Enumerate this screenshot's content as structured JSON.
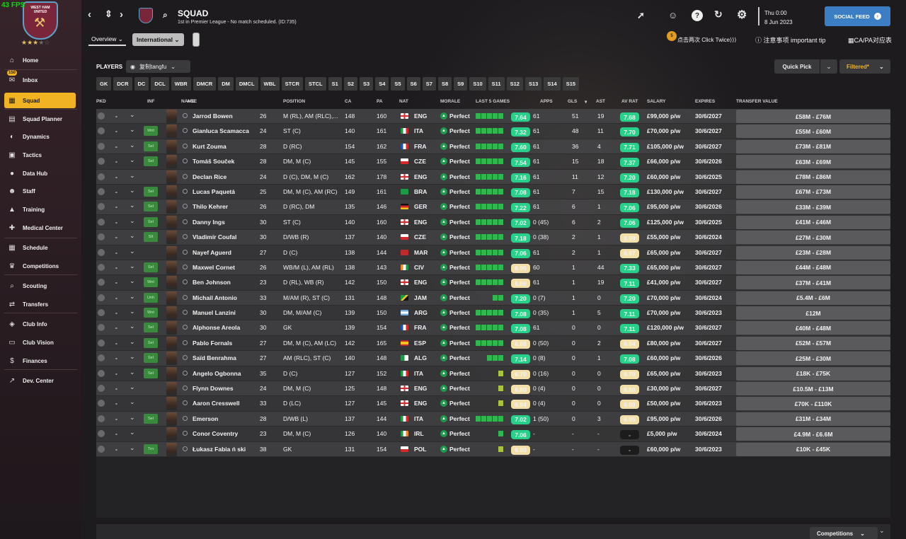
{
  "fps": "43 FPS",
  "club": {
    "name": "WEST HAM UNITED",
    "stars_full": "★★★",
    "stars_half": "★",
    "stars_empty": "☆"
  },
  "sidebar": {
    "inbox_badge": "150",
    "items": [
      {
        "label": "Home",
        "icon": "home-icon",
        "glyph": "⌂"
      },
      {
        "label": "Inbox",
        "icon": "inbox-icon",
        "glyph": "✉"
      },
      {
        "label": "Squad",
        "icon": "squad-icon",
        "glyph": "▦"
      },
      {
        "label": "Squad Planner",
        "icon": "planner-icon",
        "glyph": "▤"
      },
      {
        "label": "Dynamics",
        "icon": "dynamics-icon",
        "glyph": "◐"
      },
      {
        "label": "Tactics",
        "icon": "tactics-icon",
        "glyph": "▣"
      },
      {
        "label": "Data Hub",
        "icon": "data-hub-icon",
        "glyph": "●"
      },
      {
        "label": "Staff",
        "icon": "staff-icon",
        "glyph": "☻"
      },
      {
        "label": "Training",
        "icon": "training-icon",
        "glyph": "▲"
      },
      {
        "label": "Medical Center",
        "icon": "medical-icon",
        "glyph": "✚"
      },
      {
        "label": "Schedule",
        "icon": "schedule-icon",
        "glyph": "▦"
      },
      {
        "label": "Competitions",
        "icon": "trophy-icon",
        "glyph": "♛"
      },
      {
        "label": "Scouting",
        "icon": "scouting-icon",
        "glyph": "⌕"
      },
      {
        "label": "Transfers",
        "icon": "transfers-icon",
        "glyph": "⇄"
      },
      {
        "label": "Club Info",
        "icon": "club-info-icon",
        "glyph": "◈"
      },
      {
        "label": "Club Vision",
        "icon": "club-vision-icon",
        "glyph": "▭"
      },
      {
        "label": "Finances",
        "icon": "finances-icon",
        "glyph": "$"
      },
      {
        "label": "Dev. Center",
        "icon": "dev-center-icon",
        "glyph": "↗"
      }
    ]
  },
  "header": {
    "title": "SQUAD",
    "subtitle": "1st in Premier League - No match scheduled. (ID:735)",
    "day": "Thu 0:00",
    "date": "8 Jun 2023",
    "social_feed": "SOCIAL FEED",
    "tab_overview": "Overview",
    "tab_international": "International",
    "coin_count": "5",
    "tip_click": "点击两次 Click Twice",
    "tip_important": "注意事项 important tip",
    "tip_capa": "CA/PA对应表"
  },
  "toolbar": {
    "players_label": "PLAYERS",
    "view_name": "复制tangfu",
    "quick_pick": "Quick Pick",
    "filtered": "Filtered*",
    "positions": [
      "GK",
      "DCR",
      "DC",
      "DCL",
      "WBR",
      "DMCR",
      "DM",
      "DMCL",
      "WBL",
      "STCR",
      "STCL",
      "S1",
      "S2",
      "S3",
      "S4",
      "S5",
      "S6",
      "S7",
      "S8",
      "S9",
      "S10",
      "S11",
      "S12",
      "S13",
      "S14",
      "S15"
    ]
  },
  "columns": [
    "PKD",
    "INF",
    "NAME",
    "AGE",
    "POSITION",
    "CA",
    "PA",
    "NAT",
    "MORALE",
    "LAST 5 GAMES",
    "APPS",
    "GLS",
    "AST",
    "AV RAT",
    "SALARY",
    "EXPIRES",
    "TRANSFER VALUE"
  ],
  "players": [
    {
      "name": "Jarrod Bowen",
      "age": "26",
      "pos": "M (RL), AM (RLC),...",
      "ca": "148",
      "pa": "160",
      "nat": "ENG",
      "morale": "Perfect",
      "last5": "ggggg",
      "last": "7.64",
      "lr": "g",
      "apps": "61",
      "gls": "51",
      "ast": "19",
      "avr": "7.68",
      "ar": "g",
      "sal": "£99,000 p/w",
      "exp": "30/6/2027",
      "tv": "£58M - £76M",
      "inf": ""
    },
    {
      "name": "Gianluca Scamacca",
      "age": "24",
      "pos": "ST (C)",
      "ca": "140",
      "pa": "161",
      "nat": "ITA",
      "morale": "Perfect",
      "last5": "ggggg",
      "last": "7.32",
      "lr": "g",
      "apps": "61",
      "gls": "48",
      "ast": "11",
      "avr": "7.70",
      "ar": "g",
      "sal": "£70,000 p/w",
      "exp": "30/6/2027",
      "tv": "£55M - £60M",
      "inf": "Wnt"
    },
    {
      "name": "Kurt Zouma",
      "age": "28",
      "pos": "D (RC)",
      "ca": "154",
      "pa": "162",
      "nat": "FRA",
      "morale": "Perfect",
      "last5": "ggggg",
      "last": "7.60",
      "lr": "g",
      "apps": "61",
      "gls": "36",
      "ast": "4",
      "avr": "7.71",
      "ar": "g",
      "sal": "£105,000 p/w",
      "exp": "30/6/2027",
      "tv": "£73M - £81M",
      "inf": "Sel"
    },
    {
      "name": "Tomáš Souček",
      "age": "28",
      "pos": "DM, M (C)",
      "ca": "145",
      "pa": "155",
      "nat": "CZE",
      "morale": "Perfect",
      "last5": "ggggg",
      "last": "7.54",
      "lr": "g",
      "apps": "61",
      "gls": "15",
      "ast": "18",
      "avr": "7.37",
      "ar": "g",
      "sal": "£66,000 p/w",
      "exp": "30/6/2026",
      "tv": "£63M - £69M",
      "inf": "Sel"
    },
    {
      "name": "Declan Rice",
      "age": "24",
      "pos": "D (C), DM, M (C)",
      "ca": "162",
      "pa": "178",
      "nat": "ENG",
      "morale": "Perfect",
      "last5": "ggggg",
      "last": "7.16",
      "lr": "g",
      "apps": "61",
      "gls": "11",
      "ast": "12",
      "avr": "7.20",
      "ar": "g",
      "sal": "£60,000 p/w",
      "exp": "30/6/2025",
      "tv": "£78M - £86M",
      "inf": ""
    },
    {
      "name": "Lucas Paquetá",
      "age": "25",
      "pos": "DM, M (C), AM (RC)",
      "ca": "149",
      "pa": "161",
      "nat": "BRA",
      "morale": "Perfect",
      "last5": "ggggg",
      "last": "7.08",
      "lr": "g",
      "apps": "61",
      "gls": "7",
      "ast": "15",
      "avr": "7.18",
      "ar": "g",
      "sal": "£130,000 p/w",
      "exp": "30/6/2027",
      "tv": "£67M - £73M",
      "inf": "Sel"
    },
    {
      "name": "Thilo Kehrer",
      "age": "26",
      "pos": "D (RC), DM",
      "ca": "135",
      "pa": "146",
      "nat": "GER",
      "morale": "Perfect",
      "last5": "ggggg",
      "last": "7.22",
      "lr": "g",
      "apps": "61",
      "gls": "6",
      "ast": "1",
      "avr": "7.06",
      "ar": "g",
      "sal": "£95,000 p/w",
      "exp": "30/6/2026",
      "tv": "£33M - £39M",
      "inf": "Sel"
    },
    {
      "name": "Danny Ings",
      "age": "30",
      "pos": "ST (C)",
      "ca": "140",
      "pa": "160",
      "nat": "ENG",
      "morale": "Perfect",
      "last5": "ggggg",
      "last": "7.02",
      "lr": "g",
      "apps": "0 (45)",
      "gls": "6",
      "ast": "2",
      "avr": "7.06",
      "ar": "g",
      "sal": "£125,000 p/w",
      "exp": "30/6/2025",
      "tv": "£41M - £46M",
      "inf": "Sel"
    },
    {
      "name": "Vladimír Coufal",
      "age": "30",
      "pos": "D/WB (R)",
      "ca": "137",
      "pa": "140",
      "nat": "CZE",
      "morale": "Perfect",
      "last5": "ggggg",
      "last": "7.18",
      "lr": "g",
      "apps": "0 (38)",
      "gls": "2",
      "ast": "1",
      "avr": "6.99",
      "ar": "y",
      "sal": "£55,000 p/w",
      "exp": "30/6/2024",
      "tv": "£27M - £30M",
      "inf": "SIt"
    },
    {
      "name": "Nayef Aguerd",
      "age": "27",
      "pos": "D (C)",
      "ca": "138",
      "pa": "144",
      "nat": "MAR",
      "morale": "Perfect",
      "last5": "ggggg",
      "last": "7.06",
      "lr": "g",
      "apps": "61",
      "gls": "2",
      "ast": "1",
      "avr": "6.87",
      "ar": "y",
      "sal": "£65,000 p/w",
      "exp": "30/6/2027",
      "tv": "£23M - £28M",
      "inf": ""
    },
    {
      "name": "Maxwel Cornet",
      "age": "26",
      "pos": "WB/M (L), AM (RL)",
      "ca": "138",
      "pa": "143",
      "nat": "CIV",
      "morale": "Perfect",
      "last5": "ggggg",
      "last": "6.96",
      "lr": "y",
      "apps": "60",
      "gls": "1",
      "ast": "44",
      "avr": "7.33",
      "ar": "g",
      "sal": "£65,000 p/w",
      "exp": "30/6/2027",
      "tv": "£44M - £48M",
      "inf": "Sel"
    },
    {
      "name": "Ben Johnson",
      "age": "23",
      "pos": "D (RL), WB (R)",
      "ca": "142",
      "pa": "150",
      "nat": "ENG",
      "morale": "Perfect",
      "last5": "ggggg",
      "last": "6.86",
      "lr": "y",
      "apps": "61",
      "gls": "1",
      "ast": "19",
      "avr": "7.11",
      "ar": "g",
      "sal": "£41,000 p/w",
      "exp": "30/6/2027",
      "tv": "£37M - £41M",
      "inf": "Wnt"
    },
    {
      "name": "Michail Antonio",
      "age": "33",
      "pos": "M/AM (R), ST (C)",
      "ca": "131",
      "pa": "148",
      "nat": "JAM",
      "morale": "Perfect",
      "last5": "eeegg",
      "last": "7.20",
      "lr": "g",
      "apps": "0 (7)",
      "gls": "1",
      "ast": "0",
      "avr": "7.20",
      "ar": "g",
      "sal": "£70,000 p/w",
      "exp": "30/6/2024",
      "tv": "£5.4M - £6M",
      "inf": "Unh"
    },
    {
      "name": "Manuel Lanzini",
      "age": "30",
      "pos": "DM, M/AM (C)",
      "ca": "139",
      "pa": "150",
      "nat": "ARG",
      "morale": "Perfect",
      "last5": "ggggg",
      "last": "7.08",
      "lr": "g",
      "apps": "0 (35)",
      "gls": "1",
      "ast": "5",
      "avr": "7.11",
      "ar": "g",
      "sal": "£70,000 p/w",
      "exp": "30/6/2023",
      "tv": "£12M",
      "inf": "Wnt"
    },
    {
      "name": "Alphonse Areola",
      "age": "30",
      "pos": "GK",
      "ca": "139",
      "pa": "154",
      "nat": "FRA",
      "morale": "Perfect",
      "last5": "ggggg",
      "last": "7.08",
      "lr": "g",
      "apps": "61",
      "gls": "0",
      "ast": "0",
      "avr": "7.11",
      "ar": "g",
      "sal": "£120,000 p/w",
      "exp": "30/6/2027",
      "tv": "£40M - £48M",
      "inf": "Sel"
    },
    {
      "name": "Pablo Fornals",
      "age": "27",
      "pos": "DM, M (C), AM (LC)",
      "ca": "142",
      "pa": "165",
      "nat": "ESP",
      "morale": "Perfect",
      "last5": "ggggg",
      "last": "6.88",
      "lr": "y",
      "apps": "0 (50)",
      "gls": "0",
      "ast": "2",
      "avr": "6.84",
      "ar": "y",
      "sal": "£80,000 p/w",
      "exp": "30/6/2027",
      "tv": "£52M - £57M",
      "inf": "Sel"
    },
    {
      "name": "Saïd Benrahma",
      "age": "27",
      "pos": "AM (RLC), ST (C)",
      "ca": "140",
      "pa": "148",
      "nat": "ALG",
      "morale": "Perfect",
      "last5": "eeggg",
      "last": "7.14",
      "lr": "g",
      "apps": "0 (8)",
      "gls": "0",
      "ast": "1",
      "avr": "7.08",
      "ar": "g",
      "sal": "£60,000 p/w",
      "exp": "30/6/2026",
      "tv": "£25M - £30M",
      "inf": "Sel"
    },
    {
      "name": "Angelo Ogbonna",
      "age": "35",
      "pos": "D (C)",
      "ca": "127",
      "pa": "152",
      "nat": "ITA",
      "morale": "Perfect",
      "last5": "eeeew",
      "last": "6.70",
      "lr": "y",
      "apps": "0 (16)",
      "gls": "0",
      "ast": "0",
      "avr": "6.70",
      "ar": "y",
      "sal": "£65,000 p/w",
      "exp": "30/6/2023",
      "tv": "£18K - £75K",
      "inf": "Sel"
    },
    {
      "name": "Flynn Downes",
      "age": "24",
      "pos": "DM, M (C)",
      "ca": "125",
      "pa": "148",
      "nat": "ENG",
      "morale": "Perfect",
      "last5": "eeeew",
      "last": "6.80",
      "lr": "y",
      "apps": "0 (4)",
      "gls": "0",
      "ast": "0",
      "avr": "6.80",
      "ar": "y",
      "sal": "£30,000 p/w",
      "exp": "30/6/2027",
      "tv": "£10.5M - £13M",
      "inf": ""
    },
    {
      "name": "Aaron Cresswell",
      "age": "33",
      "pos": "D (LC)",
      "ca": "127",
      "pa": "145",
      "nat": "ENG",
      "morale": "Perfect",
      "last5": "eeeew",
      "last": "6.94",
      "lr": "y",
      "apps": "0 (4)",
      "gls": "0",
      "ast": "0",
      "avr": "6.80",
      "ar": "y",
      "sal": "£50,000 p/w",
      "exp": "30/6/2023",
      "tv": "£70K - £110K",
      "inf": ""
    },
    {
      "name": "Emerson",
      "age": "28",
      "pos": "D/WB (L)",
      "ca": "137",
      "pa": "144",
      "nat": "ITA",
      "morale": "Perfect",
      "last5": "ggggg",
      "last": "7.02",
      "lr": "g",
      "apps": "1 (50)",
      "gls": "0",
      "ast": "3",
      "avr": "6.95",
      "ar": "y",
      "sal": "£95,000 p/w",
      "exp": "30/6/2026",
      "tv": "£31M - £34M",
      "inf": "Sel"
    },
    {
      "name": "Conor Coventry",
      "age": "23",
      "pos": "DM, M (C)",
      "ca": "126",
      "pa": "140",
      "nat": "IRL",
      "morale": "Perfect",
      "last5": "eeeeg",
      "last": "7.06",
      "lr": "g",
      "apps": "-",
      "gls": "-",
      "ast": "-",
      "avr": "-",
      "ar": "n",
      "sal": "£5,000 p/w",
      "exp": "30/6/2024",
      "tv": "£4.9M - £6.6M",
      "inf": ""
    },
    {
      "name": "Łukasz Fabia ń ski",
      "age": "38",
      "pos": "GK",
      "ca": "131",
      "pa": "154",
      "nat": "POL",
      "morale": "Perfect",
      "last5": "eeeew",
      "last": "6.80",
      "lr": "y",
      "apps": "-",
      "gls": "-",
      "ast": "-",
      "avr": "-",
      "ar": "n",
      "sal": "£60,000 p/w",
      "exp": "30/6/2023",
      "tv": "£10K - £45K",
      "inf": "Trn"
    }
  ],
  "flags": {
    "ENG": "linear-gradient(#fff,#fff)",
    "ITA": "linear-gradient(90deg,#1a9b45 33%,#fff 33%,#fff 66%,#d12b2b 66%)",
    "FRA": "linear-gradient(90deg,#2350a5 33%,#fff 33%,#fff 66%,#d12b2b 66%)",
    "CZE": "linear-gradient(#fff 50%,#d12b2b 50%)",
    "BRA": "linear-gradient(#1a9b45,#1a9b45)",
    "GER": "linear-gradient(#111 33%,#d12b2b 33%,#d12b2b 66%,#f4c21b 66%)",
    "MAR": "linear-gradient(#c12a2a,#c12a2a)",
    "CIV": "linear-gradient(90deg,#f08a24 33%,#fff 33%,#fff 66%,#1a9b45 66%)",
    "JAM": "linear-gradient(135deg,#1a9b45 40%,#f4c21b 40%,#f4c21b 60%,#111 60%)",
    "ARG": "linear-gradient(#74acdf 33%,#fff 33%,#fff 66%,#74acdf 66%)",
    "ESP": "linear-gradient(#c12a2a 25%,#f4c21b 25%,#f4c21b 75%,#c12a2a 75%)",
    "ALG": "linear-gradient(90deg,#1a9b45 50%,#fff 50%)",
    "IRL": "linear-gradient(90deg,#1a9b45 33%,#fff 33%,#fff 66%,#f08a24 66%)",
    "POL": "linear-gradient(#fff 50%,#d12b2b 50%)"
  },
  "bottom": {
    "competitions": "Competitions"
  }
}
